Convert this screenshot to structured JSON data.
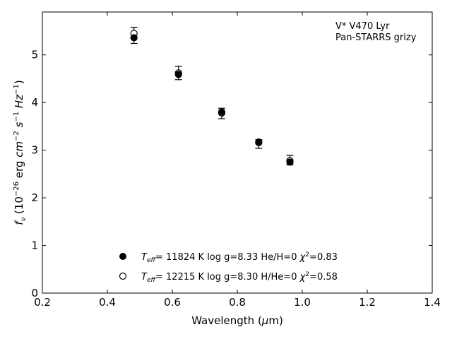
{
  "chart_data": {
    "type": "scatter",
    "annotation": [
      "V* V470 Lyr",
      "Pan-STARRS grizy"
    ],
    "xlabel": "Wavelength (μm)",
    "ylabel": "fν (10⁻²⁶ erg cm⁻² s⁻¹ Hz⁻¹)",
    "xlim": [
      0.2,
      1.4
    ],
    "ylim": [
      0,
      5.9
    ],
    "xticks": [
      0.2,
      0.4,
      0.6,
      0.8,
      1.0,
      1.2,
      1.4
    ],
    "xtick_labels": [
      "0.2",
      "0.4",
      "0.6",
      "0.8",
      "1.0",
      "1.2",
      "1.4"
    ],
    "yticks": [
      0,
      1,
      2,
      3,
      4,
      5
    ],
    "ytick_labels": [
      "0",
      "1",
      "2",
      "3",
      "4",
      "5"
    ],
    "grid": false,
    "legend_position": "lower-center",
    "series": [
      {
        "name": "Teff= 11824 K  log g=8.33  He/H=0  χ²=0.83",
        "marker": "filled-circle",
        "color": "#000000",
        "x": [
          0.482,
          0.619,
          0.752,
          0.866,
          0.962
        ],
        "y": [
          5.36,
          4.59,
          3.8,
          3.16,
          2.75
        ]
      },
      {
        "name": "Teff= 12215 K  log g=8.30  H/He=0  χ²=0.58",
        "marker": "open-circle",
        "color": "#000000",
        "x": [
          0.482,
          0.619,
          0.752,
          0.866,
          0.962
        ],
        "y": [
          5.45,
          4.62,
          3.78,
          3.17,
          2.78
        ]
      }
    ],
    "observed": {
      "x": [
        0.482,
        0.619,
        0.752,
        0.866,
        0.962
      ],
      "y": [
        5.41,
        4.62,
        3.77,
        3.13,
        2.79
      ],
      "yerr": [
        0.17,
        0.14,
        0.11,
        0.09,
        0.1
      ]
    },
    "legend": [
      {
        "marker": "filled-circle",
        "teff": "11824 K",
        "logg": "log g=8.33",
        "comp": "He/H=0",
        "chi": "=0.83"
      },
      {
        "marker": "open-circle",
        "teff": "12215 K",
        "logg": "log g=8.30",
        "comp": "H/He=0",
        "chi": "=0.58"
      }
    ]
  }
}
